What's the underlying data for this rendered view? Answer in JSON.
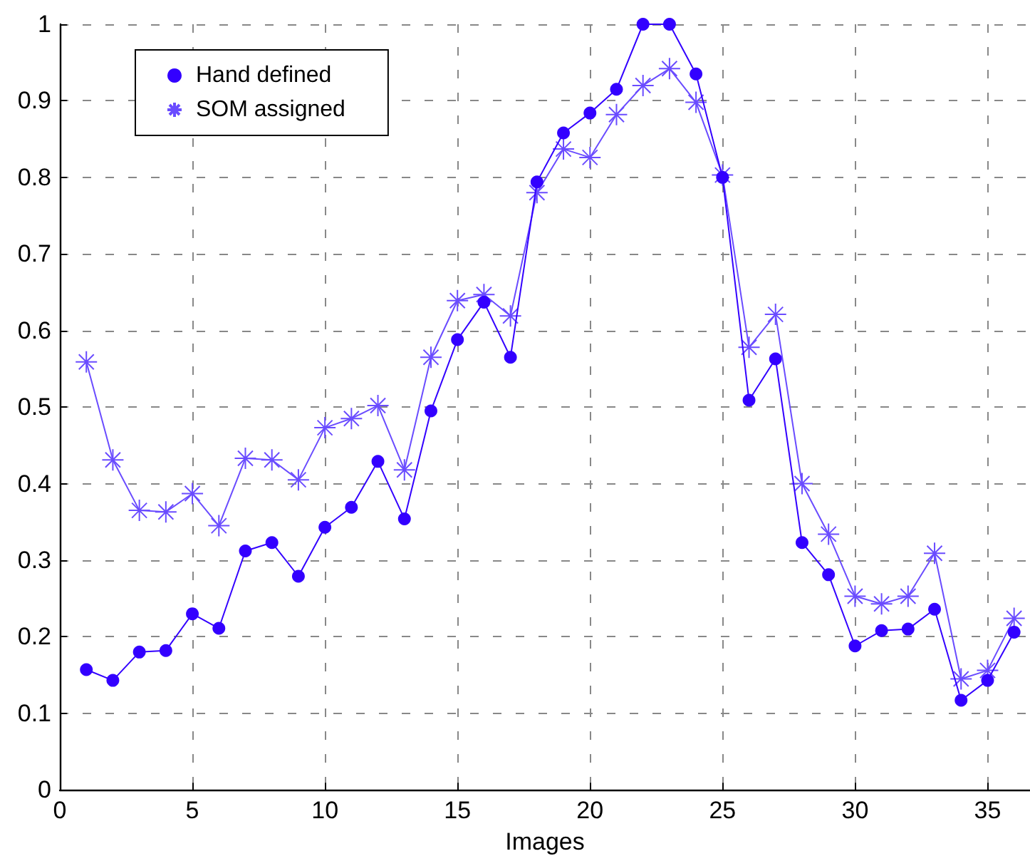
{
  "chart_data": {
    "type": "line",
    "xlabel": "Images",
    "x": [
      1,
      2,
      3,
      4,
      5,
      6,
      7,
      8,
      9,
      10,
      11,
      12,
      13,
      14,
      15,
      16,
      17,
      18,
      19,
      20,
      21,
      22,
      23,
      24,
      25,
      26,
      27,
      28,
      29,
      30,
      31,
      32,
      33,
      34,
      35,
      36
    ],
    "series": [
      {
        "name": "Hand defined",
        "color": "#3300ff",
        "marker": "circle",
        "values": [
          0.157,
          0.143,
          0.18,
          0.182,
          0.23,
          0.211,
          0.312,
          0.323,
          0.279,
          0.343,
          0.369,
          0.429,
          0.354,
          0.495,
          0.588,
          0.637,
          0.565,
          0.794,
          0.858,
          0.884,
          0.915,
          1.0,
          1.0,
          0.935,
          0.8,
          0.509,
          0.563,
          0.323,
          0.281,
          0.188,
          0.208,
          0.21,
          0.236,
          0.117,
          0.143,
          0.206
        ]
      },
      {
        "name": "SOM assigned",
        "color": "#6a4cff",
        "marker": "cross",
        "values": [
          0.559,
          0.431,
          0.365,
          0.363,
          0.387,
          0.345,
          0.433,
          0.431,
          0.405,
          0.473,
          0.485,
          0.502,
          0.418,
          0.565,
          0.639,
          0.647,
          0.619,
          0.78,
          0.837,
          0.826,
          0.882,
          0.92,
          0.942,
          0.898,
          0.803,
          0.578,
          0.621,
          0.4,
          0.334,
          0.253,
          0.243,
          0.253,
          0.309,
          0.145,
          0.156,
          0.224
        ]
      }
    ],
    "xlim": [
      0,
      36.6
    ],
    "xticks": [
      0,
      5,
      10,
      15,
      20,
      25,
      30,
      35
    ],
    "ylim": [
      0,
      1
    ],
    "yticks": [
      0,
      0.1,
      0.2,
      0.3,
      0.4,
      0.5,
      0.6,
      0.7,
      0.8,
      0.9,
      1
    ],
    "grid": true,
    "legend": "top left",
    "line_style": "solid"
  }
}
